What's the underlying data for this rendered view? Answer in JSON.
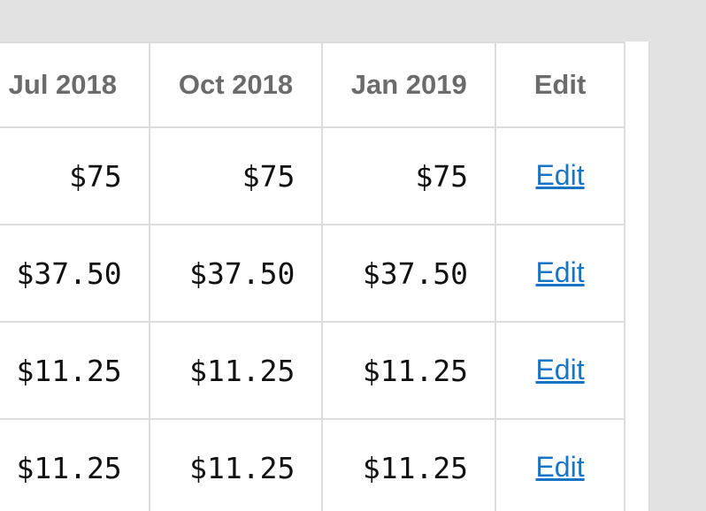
{
  "table": {
    "columns": [
      "Jul 2018",
      "Oct 2018",
      "Jan 2019",
      "Edit"
    ],
    "rows": [
      {
        "values": [
          "$75",
          "$75",
          "$75"
        ],
        "action": "Edit"
      },
      {
        "values": [
          "$37.50",
          "$37.50",
          "$37.50"
        ],
        "action": "Edit"
      },
      {
        "values": [
          "$11.25",
          "$11.25",
          "$11.25"
        ],
        "action": "Edit"
      },
      {
        "values": [
          "$11.25",
          "$11.25",
          "$11.25"
        ],
        "action": "Edit"
      }
    ]
  },
  "colors": {
    "background": "#e2e2e2",
    "panel": "#ffffff",
    "border": "#dcdcdc",
    "header_text": "#6b6b6b",
    "cell_text": "#111111",
    "link": "#1a74c4"
  }
}
